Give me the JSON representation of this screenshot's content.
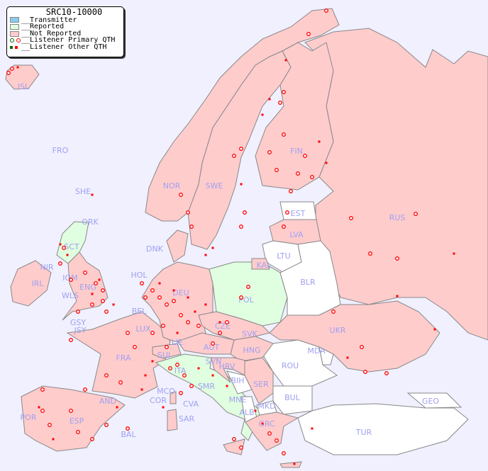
{
  "title": "SRC10-10000",
  "legend": {
    "transmitter": "__Transmitter",
    "reported": "__Reported",
    "not_reported": "__Not Reported",
    "primary": "__Listener Primary QTH",
    "other": "__Listener Other QTH"
  },
  "colors": {
    "sea": "#f0f0ff",
    "transmitter": "#88ccee",
    "reported": "#e0ffe0",
    "not_reported": "#ffcccc",
    "no_data": "#ffffff",
    "listener": "#ff0000",
    "label": "#a0a0f0"
  },
  "countries": {
    "ISL": "ISL",
    "FRO": "FRO",
    "SHE": "SHE",
    "ORK": "ORK",
    "NOR": "NOR",
    "SWE": "SWE",
    "FIN": "FIN",
    "EST": "EST",
    "LVA": "LVA",
    "LTU": "LTU",
    "KAL": "KAL",
    "RUS": "RUS",
    "BLR": "BLR",
    "DNK": "DNK",
    "HOL": "HOL",
    "DEU": "DEU",
    "POL": "POL",
    "IRL": "IRL",
    "NIR": "NIR",
    "SCT": "SCT",
    "IOM": "IOM",
    "WLS": "WLS",
    "ENG": "ENG",
    "GSY": "GSY",
    "JSY": "JSY",
    "BEL": "BEL",
    "LUX": "LUX",
    "FRA": "FRA",
    "SUI": "SUI",
    "LIE": "LIE",
    "AUT": "AUT",
    "CZE": "CZE",
    "SVK": "SVK",
    "HNG": "HNG",
    "UKR": "UKR",
    "MDA": "MDA",
    "ROU": "ROU",
    "SRB": "SER",
    "BIH": "BIH",
    "HRV": "HRV",
    "SVN": "SVN",
    "ITA": "ITA",
    "MCO": "MCO",
    "COR": "COR",
    "SMR": "SMR",
    "CVA": "CVA",
    "MNE": "MNE",
    "ALB": "ALB",
    "MKD": "MKD",
    "BUL": "BUL",
    "GRC": "GRC",
    "TUR": "TUR",
    "GEO": "GEO",
    "POR": "POR",
    "ESP": "ESP",
    "AND": "AND",
    "BAL": "BAL",
    "SAR": "SAR"
  }
}
